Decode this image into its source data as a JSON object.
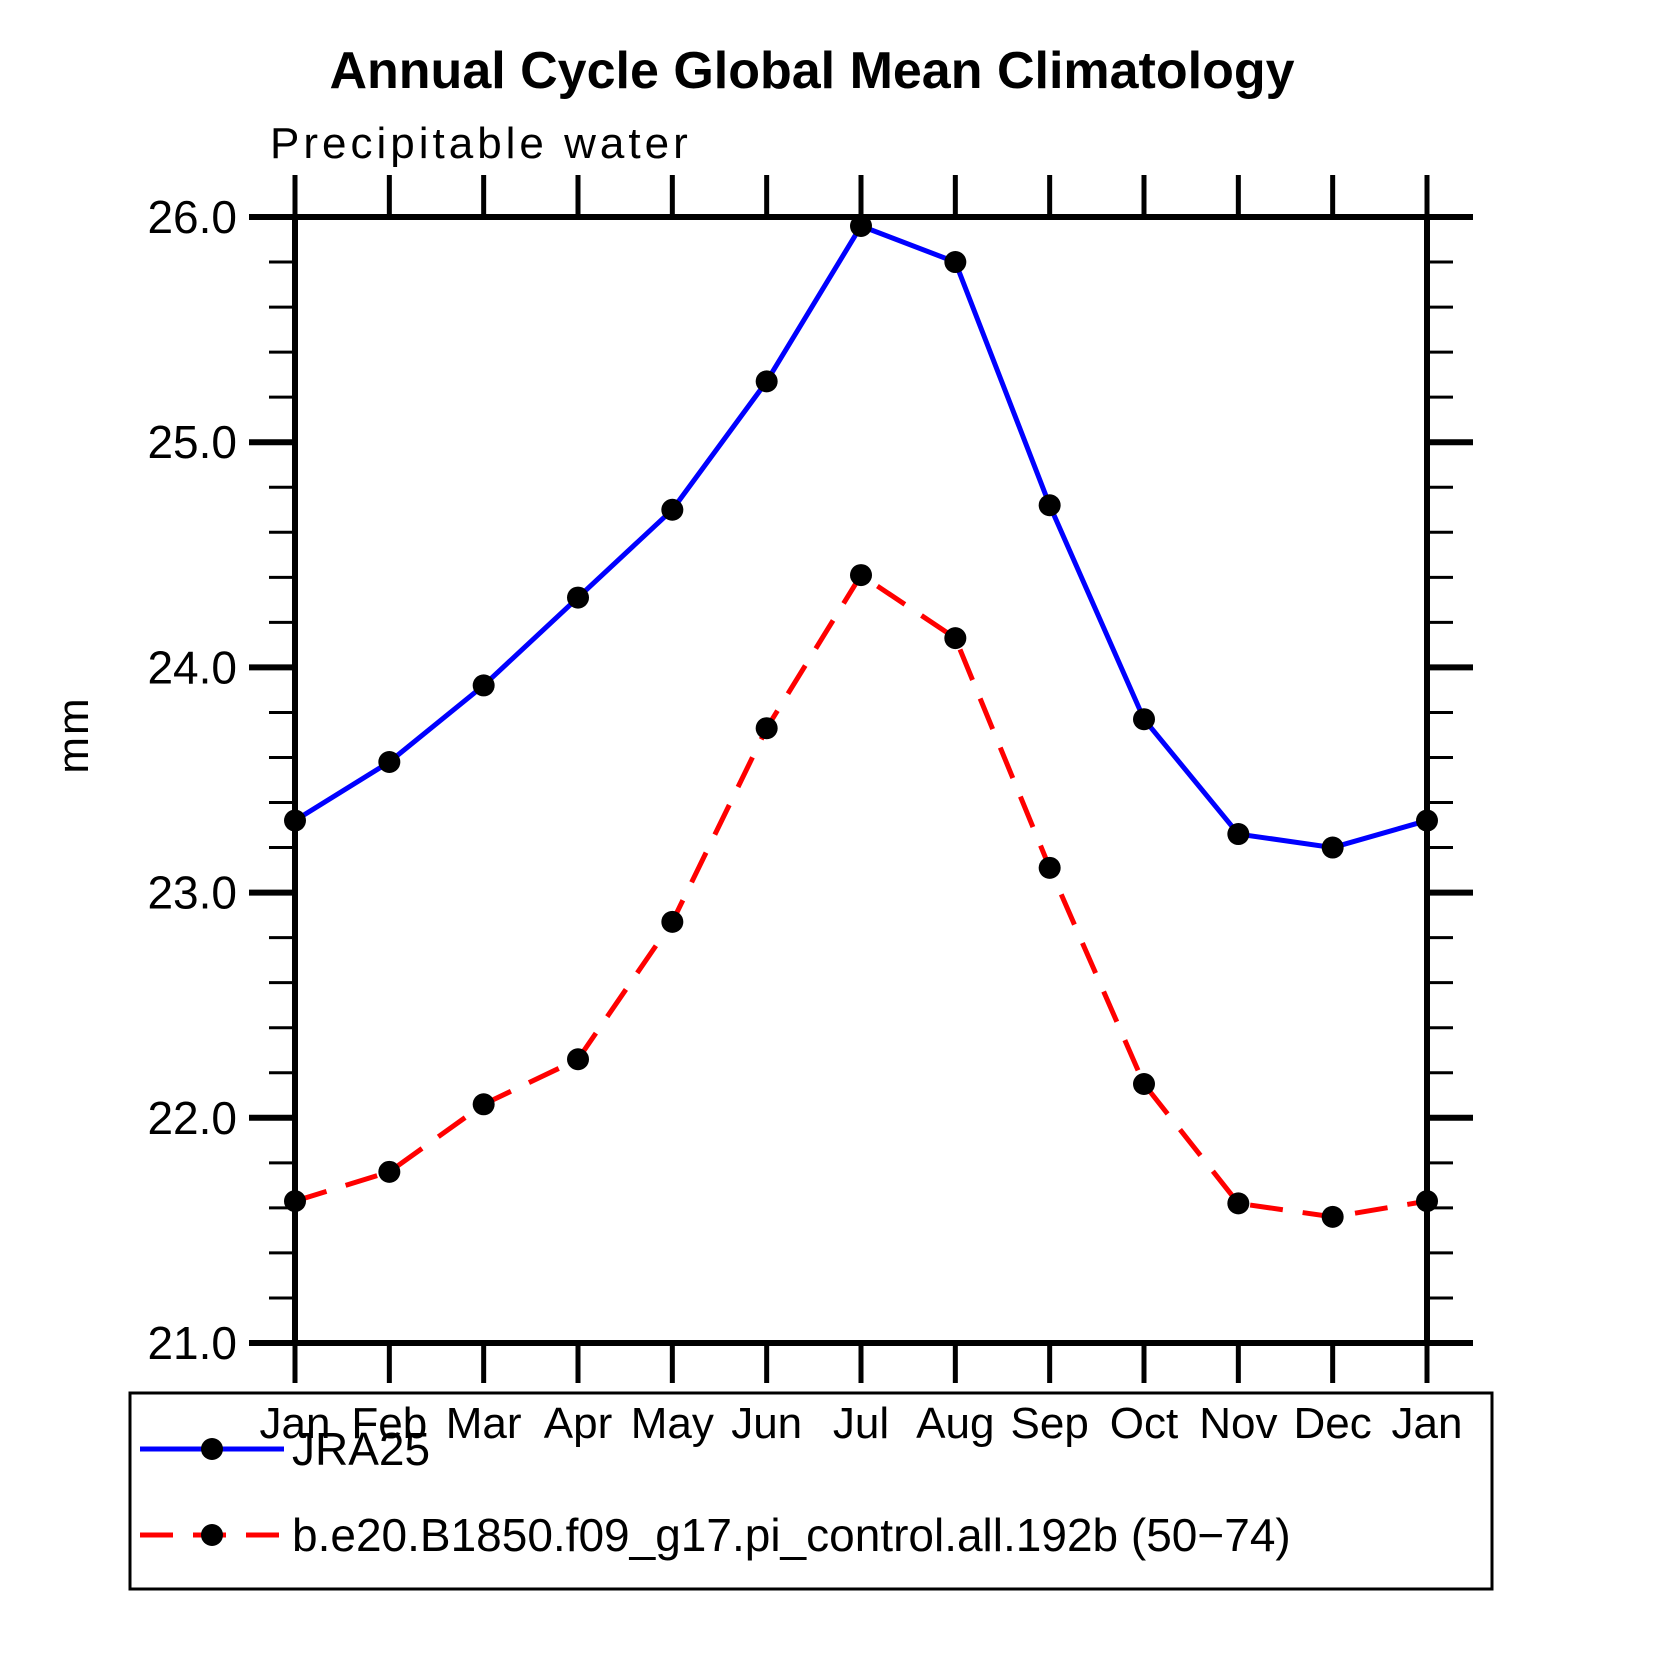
{
  "chart_data": {
    "type": "line",
    "title": "Annual Cycle Global Mean Climatology",
    "subtitle": "Precipitable water",
    "ylabel": "mm",
    "categories": [
      "Jan",
      "Feb",
      "Mar",
      "Apr",
      "May",
      "Jun",
      "Jul",
      "Aug",
      "Sep",
      "Oct",
      "Nov",
      "Dec",
      "Jan"
    ],
    "ylim": [
      21.0,
      26.0
    ],
    "ytick_major": 1.0,
    "ytick_minor": 0.2,
    "ytick_labels": [
      "21.0",
      "22.0",
      "23.0",
      "24.0",
      "25.0",
      "26.0"
    ],
    "grid": false,
    "legend_position": "bottom",
    "marker": "filled-circle",
    "marker_color": "#000000",
    "series": [
      {
        "name": "JRA25",
        "color": "#0000ff",
        "style": "solid",
        "values": [
          23.32,
          23.58,
          23.92,
          24.31,
          24.7,
          25.27,
          25.96,
          25.8,
          24.72,
          23.77,
          23.26,
          23.2,
          23.32
        ]
      },
      {
        "name": "b.e20.B1850.f09_g17.pi_control.all.192b (50−74)",
        "color": "#ff0000",
        "style": "dashed",
        "values": [
          21.63,
          21.76,
          22.06,
          22.26,
          22.87,
          23.73,
          24.41,
          24.13,
          23.11,
          22.15,
          21.62,
          21.56,
          21.63
        ]
      }
    ]
  }
}
